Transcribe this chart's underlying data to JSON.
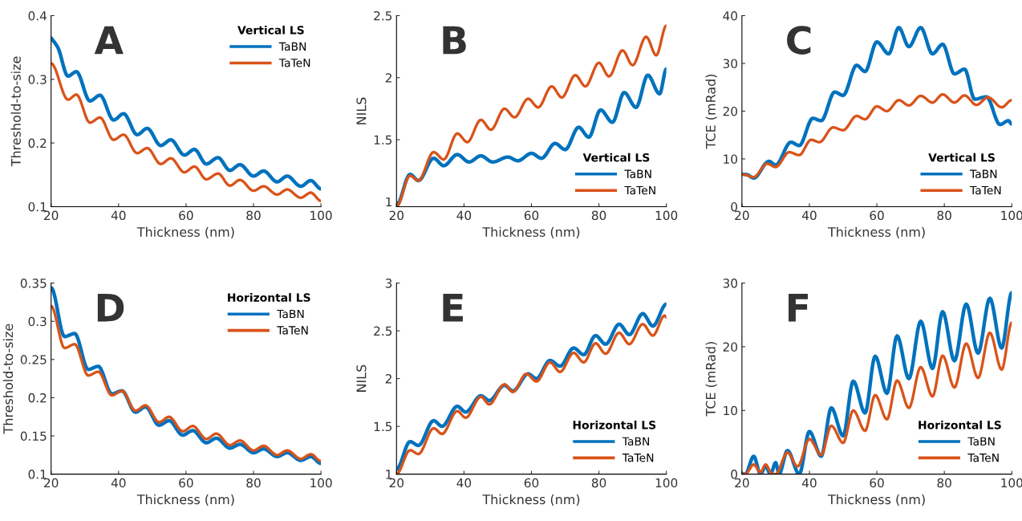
{
  "chart_data": [
    {
      "type": "line",
      "annotations": [
        "A"
      ],
      "xlabel": "Thickness (nm)",
      "ylabel": "Threshold-to-size",
      "legend_title": "Vertical LS",
      "legend": "top right",
      "xlim": [
        20,
        100
      ],
      "xticks": [
        20,
        40,
        60,
        80,
        100
      ],
      "ylim": [
        0.1,
        0.4
      ],
      "yticks": [
        0.1,
        0.2,
        0.3,
        0.4
      ],
      "series": [
        {
          "name": "TaBN",
          "color": "#0072bd",
          "x": [
            20,
            22,
            25,
            27.5,
            31.5,
            34.5,
            38.5,
            41.5,
            45.5,
            48.5,
            52.5,
            55.5,
            59.5,
            62.5,
            66,
            69.5,
            73,
            76,
            80,
            83,
            87,
            90,
            94,
            97,
            100
          ],
          "values": [
            0.365,
            0.35,
            0.305,
            0.312,
            0.266,
            0.275,
            0.236,
            0.246,
            0.213,
            0.223,
            0.196,
            0.205,
            0.181,
            0.19,
            0.167,
            0.177,
            0.157,
            0.166,
            0.148,
            0.156,
            0.139,
            0.148,
            0.132,
            0.141,
            0.128
          ]
        },
        {
          "name": "TaTeN",
          "color": "#d95319",
          "x": [
            20,
            25,
            27.5,
            31.5,
            34.5,
            38.5,
            41.5,
            45.5,
            48.5,
            52.5,
            55.5,
            59.5,
            62.5,
            66,
            69.5,
            73,
            76,
            80,
            83,
            87,
            90,
            94,
            97,
            100
          ],
          "values": [
            0.325,
            0.268,
            0.276,
            0.232,
            0.24,
            0.205,
            0.213,
            0.184,
            0.192,
            0.167,
            0.176,
            0.154,
            0.163,
            0.143,
            0.152,
            0.133,
            0.142,
            0.125,
            0.132,
            0.119,
            0.127,
            0.114,
            0.122,
            0.109
          ]
        }
      ]
    },
    {
      "type": "line",
      "annotations": [
        "B"
      ],
      "xlabel": "Thickness (nm)",
      "ylabel": "NILS",
      "legend_title": "Vertical LS",
      "legend": "bottom right",
      "xlim": [
        20,
        100
      ],
      "xticks": [
        20,
        40,
        60,
        80,
        100
      ],
      "ylim": [
        0.96,
        2.5
      ],
      "yticks": [
        1,
        1.5,
        2,
        2.5
      ],
      "series": [
        {
          "name": "TaBN",
          "color": "#0072bd",
          "x": [
            20,
            24,
            26.5,
            31,
            34,
            38,
            41.5,
            45,
            48.5,
            53,
            56,
            60,
            63,
            67,
            70,
            74,
            77,
            80.5,
            84,
            87.5,
            91,
            94.5,
            98,
            100
          ],
          "values": [
            0.97,
            1.22,
            1.17,
            1.35,
            1.29,
            1.38,
            1.32,
            1.37,
            1.32,
            1.36,
            1.33,
            1.39,
            1.35,
            1.47,
            1.42,
            1.6,
            1.52,
            1.74,
            1.64,
            1.88,
            1.76,
            2.02,
            1.87,
            2.07
          ]
        },
        {
          "name": "TaTeN",
          "color": "#d95319",
          "x": [
            20,
            24,
            26.5,
            31,
            34,
            38,
            41,
            45,
            48,
            52,
            55,
            59,
            62,
            66,
            69,
            73,
            76,
            80,
            83,
            87,
            90,
            94,
            97,
            100
          ],
          "values": [
            0.96,
            1.21,
            1.17,
            1.4,
            1.34,
            1.55,
            1.48,
            1.66,
            1.58,
            1.75,
            1.68,
            1.83,
            1.76,
            1.93,
            1.84,
            2.02,
            1.93,
            2.12,
            2.01,
            2.22,
            2.1,
            2.33,
            2.18,
            2.42
          ]
        }
      ]
    },
    {
      "type": "line",
      "annotations": [
        "C"
      ],
      "xlabel": "Thickness (nm)",
      "ylabel": "TCE (mRad)",
      "legend_title": "Vertical LS",
      "legend": "bottom right",
      "xlim": [
        20,
        100
      ],
      "xticks": [
        20,
        40,
        60,
        80,
        100
      ],
      "ylim": [
        0,
        40
      ],
      "yticks": [
        0,
        10,
        20,
        30,
        40
      ],
      "series": [
        {
          "name": "TaBN",
          "color": "#0072bd",
          "x": [
            20,
            21.5,
            23.5,
            28,
            30,
            34.5,
            37,
            41,
            43.5,
            47.5,
            50,
            54,
            56.5,
            60,
            63.5,
            66.5,
            69.5,
            73,
            76.5,
            79.5,
            83,
            86,
            89,
            92.5,
            96.5,
            99,
            100
          ],
          "values": [
            6.8,
            6.7,
            6,
            9.5,
            8.7,
            13.5,
            12.8,
            18.5,
            18,
            24,
            23.3,
            29.6,
            28.3,
            34.5,
            32,
            37.5,
            33.5,
            37.5,
            32,
            34,
            27.8,
            28.8,
            22.5,
            23,
            17.2,
            18,
            17.3
          ]
        },
        {
          "name": "TaTeN",
          "color": "#d95319",
          "x": [
            20,
            23.5,
            27.5,
            30,
            34,
            37,
            40.5,
            43,
            47,
            50,
            54,
            56.5,
            60,
            63,
            66.5,
            69.5,
            73,
            76.5,
            79.5,
            83,
            86,
            89.5,
            93,
            97,
            100
          ],
          "values": [
            6.8,
            6.2,
            9,
            8.3,
            11.4,
            10.8,
            14,
            13.5,
            16.6,
            16,
            19,
            18.3,
            21,
            20,
            22.3,
            21.2,
            23.2,
            21.8,
            23.5,
            21.8,
            23.3,
            21.3,
            22.9,
            20.8,
            22.3
          ]
        }
      ]
    },
    {
      "type": "line",
      "annotations": [
        "D"
      ],
      "xlabel": "Thickness (nm)",
      "ylabel": "Threshold-to-size",
      "legend_title": "Horizontal LS",
      "legend": "top right",
      "xlim": [
        20,
        100
      ],
      "xticks": [
        20,
        40,
        60,
        80,
        100
      ],
      "ylim": [
        0.1,
        0.35
      ],
      "yticks": [
        0.1,
        0.15,
        0.2,
        0.25,
        0.3,
        0.35
      ],
      "series": [
        {
          "name": "TaBN",
          "color": "#0072bd",
          "x": [
            20,
            24,
            27,
            31,
            34,
            38,
            41,
            45,
            48,
            52,
            55,
            59,
            62,
            66,
            69,
            73,
            76,
            80,
            83,
            87,
            90,
            94,
            97,
            100
          ],
          "values": [
            0.344,
            0.28,
            0.284,
            0.237,
            0.241,
            0.205,
            0.209,
            0.181,
            0.188,
            0.164,
            0.17,
            0.151,
            0.157,
            0.141,
            0.147,
            0.134,
            0.139,
            0.128,
            0.133,
            0.123,
            0.128,
            0.118,
            0.123,
            0.114
          ]
        },
        {
          "name": "TaTeN",
          "color": "#d95319",
          "x": [
            20,
            24,
            27,
            31,
            34,
            38,
            41,
            45,
            48,
            52,
            55,
            59,
            62,
            66,
            69,
            73,
            76,
            80,
            83,
            87,
            90,
            94,
            97,
            100
          ],
          "values": [
            0.32,
            0.265,
            0.27,
            0.229,
            0.234,
            0.203,
            0.209,
            0.183,
            0.19,
            0.168,
            0.175,
            0.156,
            0.163,
            0.146,
            0.153,
            0.138,
            0.144,
            0.131,
            0.137,
            0.125,
            0.131,
            0.12,
            0.126,
            0.117
          ]
        }
      ]
    },
    {
      "type": "line",
      "annotations": [
        "E"
      ],
      "xlabel": "Thickness (nm)",
      "ylabel": "NILS",
      "legend_title": "Horizontal LS",
      "legend": "bottom right",
      "xlim": [
        20,
        100
      ],
      "xticks": [
        20,
        40,
        60,
        80,
        100
      ],
      "ylim": [
        1,
        3
      ],
      "yticks": [
        1,
        1.5,
        2,
        2.5,
        3
      ],
      "series": [
        {
          "name": "TaBN",
          "color": "#0072bd",
          "x": [
            20,
            24,
            26.5,
            31,
            33.5,
            38,
            40.5,
            45,
            47.5,
            52,
            54.5,
            59,
            61.5,
            65.5,
            68.5,
            72.5,
            75.5,
            79,
            82,
            86,
            89,
            93,
            96,
            100
          ],
          "values": [
            1.05,
            1.34,
            1.3,
            1.56,
            1.5,
            1.71,
            1.65,
            1.82,
            1.77,
            1.93,
            1.87,
            2.05,
            2.0,
            2.19,
            2.13,
            2.32,
            2.25,
            2.45,
            2.36,
            2.57,
            2.46,
            2.68,
            2.55,
            2.78
          ]
        },
        {
          "name": "TaTeN",
          "color": "#d95319",
          "x": [
            20,
            24,
            26.5,
            31,
            33.5,
            38,
            40.5,
            45,
            47.5,
            52,
            54.5,
            58.5,
            61.5,
            65.5,
            68.5,
            72.5,
            75.5,
            79,
            82,
            86,
            89,
            93,
            96,
            99.5,
            100
          ],
          "values": [
            1.0,
            1.25,
            1.21,
            1.48,
            1.42,
            1.66,
            1.59,
            1.81,
            1.73,
            1.94,
            1.86,
            2.05,
            1.97,
            2.17,
            2.07,
            2.27,
            2.17,
            2.37,
            2.26,
            2.48,
            2.36,
            2.57,
            2.45,
            2.66,
            2.64
          ]
        }
      ]
    },
    {
      "type": "line",
      "annotations": [
        "F"
      ],
      "xlabel": "Thickness (nm)",
      "ylabel": "TCE (mRad)",
      "legend_title": "Horizontal LS",
      "legend": "bottom right",
      "xlim": [
        20,
        100
      ],
      "xticks": [
        20,
        40,
        60,
        80,
        100
      ],
      "ylim": [
        0,
        30
      ],
      "yticks": [
        0,
        10,
        20,
        30
      ],
      "series": [
        {
          "name": "TaBN",
          "color": "#0072bd",
          "x": [
            20,
            21,
            23.5,
            25.5,
            27,
            28.5,
            30,
            31,
            33.5,
            37,
            40,
            43.5,
            46.5,
            50,
            53,
            56.5,
            59.5,
            63,
            66,
            69.5,
            73,
            76.5,
            79.5,
            83,
            86.5,
            90,
            93.5,
            97,
            100
          ],
          "values": [
            0,
            0,
            2.8,
            0,
            1.2,
            0,
            1.8,
            0,
            3.7,
            0,
            6.7,
            2.8,
            10.4,
            6,
            14.6,
            9.6,
            18.5,
            12.7,
            21.7,
            15,
            24,
            16.6,
            25.5,
            17.8,
            26.7,
            19,
            27.6,
            19.8,
            28.5
          ]
        },
        {
          "name": "TaTeN",
          "color": "#d95319",
          "x": [
            20,
            21,
            23.5,
            25.5,
            27,
            29,
            30,
            33.5,
            36.5,
            40,
            43.5,
            46.5,
            50,
            53,
            56.5,
            59.5,
            63,
            66,
            69.5,
            73,
            76.5,
            79.5,
            83,
            86.5,
            90,
            93.5,
            97,
            100
          ],
          "values": [
            0,
            0,
            1.5,
            0.3,
            1.5,
            0,
            0,
            3.4,
            1.2,
            5.5,
            3,
            7.6,
            4.9,
            10,
            6.8,
            12.4,
            8.6,
            14.7,
            10.4,
            16.8,
            12.2,
            18.6,
            13.6,
            20.5,
            15.1,
            22.2,
            16.4,
            23.8
          ]
        }
      ]
    }
  ]
}
